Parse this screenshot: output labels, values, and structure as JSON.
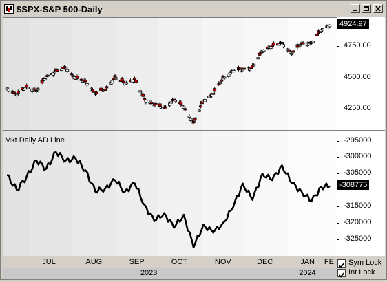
{
  "window": {
    "title": "$SPX-S&P 500-Daily",
    "controls": [
      "minimize-icon",
      "maximize-icon",
      "close-icon"
    ]
  },
  "price_panel": {
    "ticks": [
      "4924.97",
      "4750.00",
      "4500.00",
      "4250.00"
    ],
    "last_value": "4924.97",
    "colors": {
      "up": "#ffffff",
      "down": "#cc0000",
      "outline": "#000000"
    }
  },
  "ad_panel": {
    "title": "Mkt Daily AD Line",
    "ticks": [
      "-295000",
      "-300000",
      "-305000",
      "-315000",
      "-320000",
      "-325000"
    ],
    "last_value": "-308775"
  },
  "x_axis": {
    "months": [
      "JUL",
      "AUG",
      "SEP",
      "OCT",
      "NOV",
      "DEC",
      "JAN",
      "FE"
    ],
    "years": [
      "2023",
      "2024"
    ]
  },
  "options": {
    "sym_lock": {
      "label": "Sym Lock",
      "checked": true
    },
    "int_lock": {
      "label": "Int Lock",
      "checked": true
    }
  },
  "chart_data": [
    {
      "type": "candlestick",
      "title": "$SPX-S&P 500-Daily",
      "x": [
        "2023-06-15",
        "2023-06-22",
        "2023-06-29",
        "2023-07-06",
        "2023-07-13",
        "2023-07-20",
        "2023-07-27",
        "2023-08-03",
        "2023-08-10",
        "2023-08-17",
        "2023-08-24",
        "2023-08-31",
        "2023-09-07",
        "2023-09-14",
        "2023-09-21",
        "2023-09-28",
        "2023-10-05",
        "2023-10-12",
        "2023-10-19",
        "2023-10-26",
        "2023-11-02",
        "2023-11-09",
        "2023-11-16",
        "2023-11-23",
        "2023-11-30",
        "2023-12-07",
        "2023-12-14",
        "2023-12-21",
        "2023-12-28",
        "2024-01-04",
        "2024-01-11",
        "2024-01-18",
        "2024-01-25",
        "2024-01-31"
      ],
      "close": [
        4420,
        4370,
        4430,
        4400,
        4510,
        4560,
        4580,
        4500,
        4470,
        4380,
        4410,
        4510,
        4460,
        4490,
        4330,
        4290,
        4260,
        4330,
        4270,
        4140,
        4320,
        4380,
        4500,
        4560,
        4570,
        4590,
        4720,
        4760,
        4780,
        4700,
        4780,
        4780,
        4890,
        4925
      ],
      "ylim": [
        4100,
        4950
      ],
      "yticks": [
        4250,
        4500,
        4750
      ]
    },
    {
      "type": "line",
      "title": "Mkt Daily AD Line",
      "x": [
        "2023-06-15",
        "2023-06-22",
        "2023-06-29",
        "2023-07-06",
        "2023-07-13",
        "2023-07-20",
        "2023-07-27",
        "2023-08-03",
        "2023-08-10",
        "2023-08-17",
        "2023-08-24",
        "2023-08-31",
        "2023-09-07",
        "2023-09-14",
        "2023-09-21",
        "2023-09-28",
        "2023-10-05",
        "2023-10-12",
        "2023-10-19",
        "2023-10-26",
        "2023-11-02",
        "2023-11-09",
        "2023-11-16",
        "2023-11-23",
        "2023-11-30",
        "2023-12-07",
        "2023-12-14",
        "2023-12-21",
        "2023-12-28",
        "2024-01-04",
        "2024-01-11",
        "2024-01-18",
        "2024-01-25",
        "2024-01-31"
      ],
      "values": [
        -305500,
        -310000,
        -306000,
        -301000,
        -303500,
        -298500,
        -301000,
        -300500,
        -304000,
        -310500,
        -309500,
        -307000,
        -310500,
        -308000,
        -314500,
        -319500,
        -317000,
        -321500,
        -317500,
        -327500,
        -320500,
        -323000,
        -320000,
        -315500,
        -308000,
        -313000,
        -305000,
        -307000,
        -302500,
        -308000,
        -310500,
        -313500,
        -309000,
        -308775
      ],
      "ylim": [
        -329000,
        -293000
      ],
      "yticks": [
        -295000,
        -300000,
        -305000,
        -310000,
        -315000,
        -320000,
        -325000
      ]
    }
  ]
}
